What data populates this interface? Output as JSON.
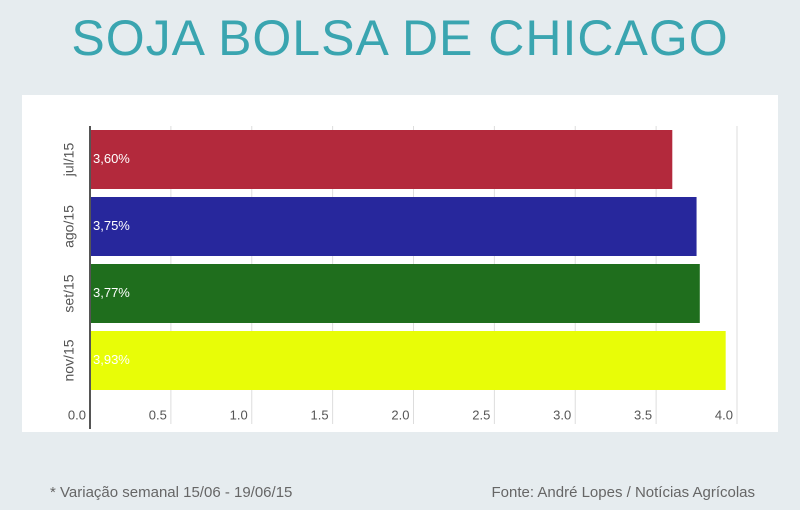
{
  "chart_data": {
    "type": "bar",
    "orientation": "horizontal",
    "title": "SOJA BOLSA DE CHICAGO",
    "categories": [
      "jul/15",
      "ago/15",
      "set/15",
      "nov/15"
    ],
    "values": [
      3.6,
      3.75,
      3.77,
      3.93
    ],
    "value_labels": [
      "3,60%",
      "3,75%",
      "3,77%",
      "3,93%"
    ],
    "colors": [
      "#b3293c",
      "#27279c",
      "#1f6e1d",
      "#e8fd07"
    ],
    "xlim": [
      0,
      4.0
    ],
    "xticks": [
      {
        "value": 0,
        "label": "0.0"
      },
      0.5,
      {
        "value": 1,
        "label": "1.0"
      },
      1.5,
      {
        "value": 2,
        "label": "2.0"
      },
      2.5,
      {
        "value": 3,
        "label": "3.0"
      },
      3.5,
      {
        "value": 4,
        "label": "4.0"
      }
    ],
    "grid": true,
    "footnote": "* Variação semanal 15/06 - 19/06/15",
    "source": "Fonte: André Lopes / Notícias Agrícolas"
  }
}
